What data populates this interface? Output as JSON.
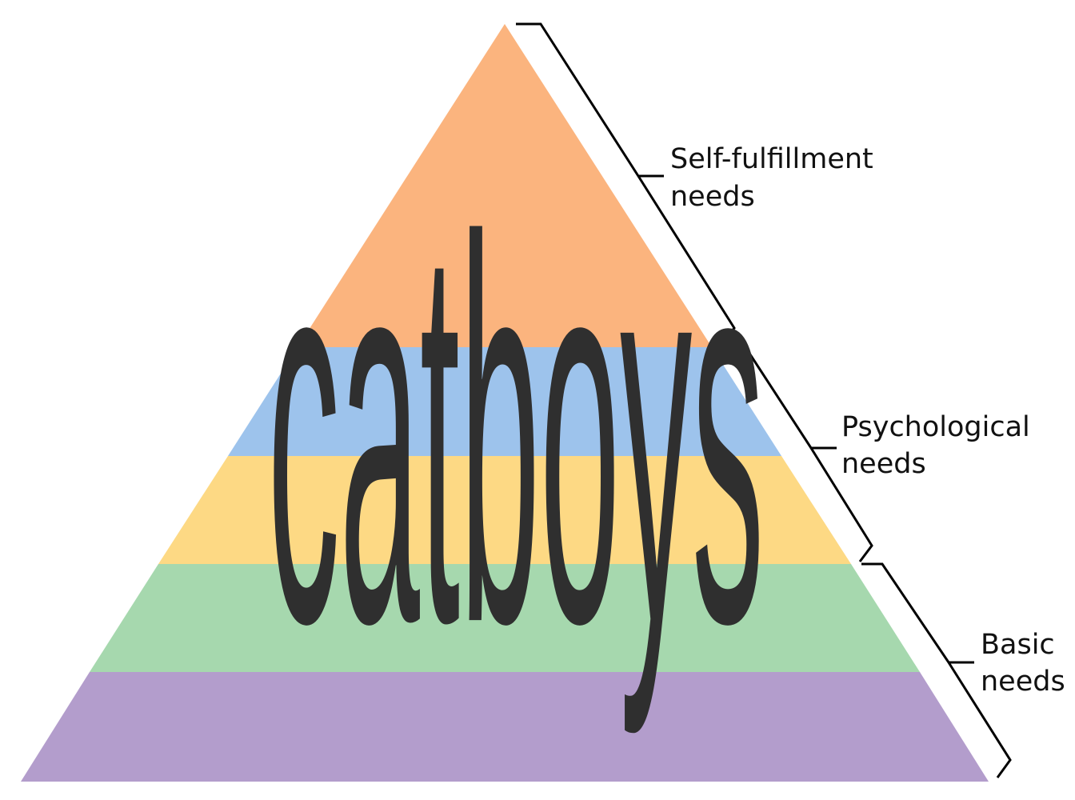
{
  "pyramid": {
    "tiers": [
      {
        "name": "top",
        "color": "#FBB47E"
      },
      {
        "name": "tier-2",
        "color": "#9DC3EC"
      },
      {
        "name": "tier-3",
        "color": "#FDD984"
      },
      {
        "name": "tier-4",
        "color": "#A6D8AE"
      },
      {
        "name": "base",
        "color": "#B39DCC"
      }
    ],
    "brackets": [
      {
        "line1": "Self-fulfillment",
        "line2": "needs"
      },
      {
        "line1": "Psychological",
        "line2": "needs"
      },
      {
        "line1": "Basic",
        "line2": "needs"
      }
    ]
  },
  "overlay": {
    "text": "catboys",
    "color": "#2f2f2f"
  }
}
